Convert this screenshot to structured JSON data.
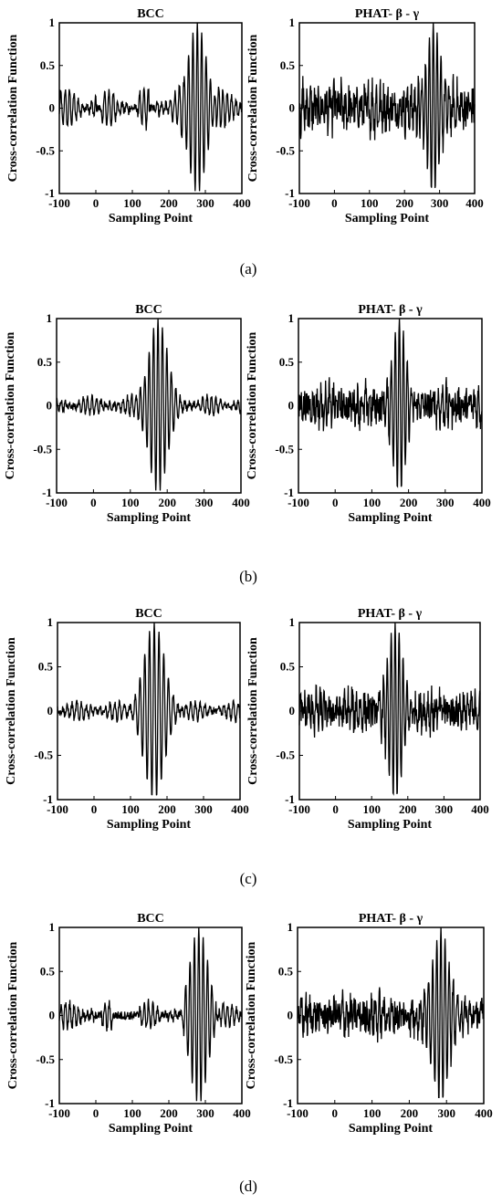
{
  "chart_data": [
    {
      "id": "a-left",
      "row": "a",
      "type": "line",
      "title": "BCC",
      "xlabel": "Sampling Point",
      "ylabel": "Cross-correlation Function",
      "xlim": [
        -100,
        400
      ],
      "ylim": [
        -1,
        1
      ],
      "xticks": [
        "-100",
        "0",
        "100",
        "200",
        "300",
        "400"
      ],
      "yticks": [
        "-1",
        "-0.5",
        "0",
        "0.5",
        "1"
      ],
      "grid": false,
      "series": [
        {
          "peak_x": 278,
          "peak_y": 1.0,
          "envelope_width": 35,
          "period": 12,
          "background_amplitude": 0.22,
          "noise_level": 0.05,
          "background_ranges": [
            [
              -100,
              0
            ],
            [
              15,
              90
            ],
            [
              115,
              145
            ],
            [
              165,
              240
            ],
            [
              330,
              400
            ]
          ]
        }
      ]
    },
    {
      "id": "a-right",
      "row": "a",
      "type": "line",
      "title": "PHAT- β - γ",
      "xlabel": "Sampling Point",
      "ylabel": "Cross-correlation Function",
      "xlim": [
        -100,
        400
      ],
      "ylim": [
        -1,
        1
      ],
      "xticks": [
        "-100",
        "0",
        "100",
        "200",
        "300",
        "400"
      ],
      "yticks": [
        "-1",
        "-0.5",
        "0",
        "0.5",
        "1"
      ],
      "grid": false,
      "series": [
        {
          "peak_x": 282,
          "peak_y": 1.0,
          "envelope_width": 28,
          "period": 11,
          "background_amplitude": 0.22,
          "noise_level": 0.22,
          "background_ranges": [
            [
              -100,
              0
            ],
            [
              15,
              400
            ]
          ]
        }
      ]
    },
    {
      "id": "b-left",
      "row": "b",
      "type": "line",
      "title": "BCC",
      "xlabel": "Sampling Point",
      "ylabel": "Cross-correlation Function",
      "xlim": [
        -100,
        400
      ],
      "ylim": [
        -1,
        1
      ],
      "xticks": [
        "-100",
        "0",
        "100",
        "200",
        "300",
        "400"
      ],
      "yticks": [
        "-1",
        "-0.5",
        "0",
        "0.5",
        "1"
      ],
      "grid": false,
      "series": [
        {
          "peak_x": 175,
          "peak_y": 1.0,
          "envelope_width": 35,
          "period": 12,
          "background_amplitude": 0.1,
          "noise_level": 0.04,
          "background_ranges": [
            [
              -100,
              400
            ]
          ]
        }
      ]
    },
    {
      "id": "b-right",
      "row": "b",
      "type": "line",
      "title": "PHAT- β - γ",
      "xlabel": "Sampling Point",
      "ylabel": "Cross-correlation Function",
      "xlim": [
        -100,
        400
      ],
      "ylim": [
        -1,
        1
      ],
      "xticks": [
        "-100",
        "0",
        "100",
        "200",
        "300",
        "400"
      ],
      "yticks": [
        "-1",
        "-0.5",
        "0",
        "0.5",
        "1"
      ],
      "grid": false,
      "series": [
        {
          "peak_x": 175,
          "peak_y": 1.0,
          "envelope_width": 28,
          "period": 11,
          "background_amplitude": 0.16,
          "noise_level": 0.18,
          "background_ranges": [
            [
              -100,
              0
            ],
            [
              15,
              400
            ]
          ]
        }
      ]
    },
    {
      "id": "c-left",
      "row": "c",
      "type": "line",
      "title": "BCC",
      "xlabel": "Sampling Point",
      "ylabel": "Cross-correlation Function",
      "xlim": [
        -100,
        400
      ],
      "ylim": [
        -1,
        1
      ],
      "xticks": [
        "-100",
        "0",
        "100",
        "200",
        "300",
        "400"
      ],
      "yticks": [
        "-1",
        "-0.5",
        "0",
        "0.5",
        "1"
      ],
      "grid": false,
      "series": [
        {
          "peak_x": 165,
          "peak_y": 1.0,
          "envelope_width": 40,
          "period": 13,
          "background_amplitude": 0.1,
          "noise_level": 0.04,
          "background_ranges": [
            [
              -100,
              110
            ],
            [
              235,
              400
            ]
          ]
        }
      ]
    },
    {
      "id": "c-right",
      "row": "c",
      "type": "line",
      "title": "PHAT- β - γ",
      "xlabel": "Sampling Point",
      "ylabel": "Cross-correlation Function",
      "xlim": [
        -100,
        400
      ],
      "ylim": [
        -1,
        1
      ],
      "xticks": [
        "-100",
        "0",
        "100",
        "200",
        "300",
        "400"
      ],
      "yticks": [
        "-1",
        "-0.5",
        "0",
        "0.5",
        "1"
      ],
      "grid": false,
      "series": [
        {
          "peak_x": 165,
          "peak_y": 1.0,
          "envelope_width": 30,
          "period": 11,
          "background_amplitude": 0.16,
          "noise_level": 0.18,
          "background_ranges": [
            [
              -100,
              0
            ],
            [
              15,
              400
            ]
          ]
        }
      ]
    },
    {
      "id": "d-left",
      "row": "d",
      "type": "line",
      "title": "BCC",
      "xlabel": "Sampling Point",
      "ylabel": "Cross-correlation Function",
      "xlim": [
        -100,
        400
      ],
      "ylim": [
        -1,
        1
      ],
      "xticks": [
        "-100",
        "0",
        "100",
        "200",
        "300",
        "400"
      ],
      "yticks": [
        "-1",
        "-0.5",
        "0",
        "0.5",
        "1"
      ],
      "grid": false,
      "series": [
        {
          "peak_x": 282,
          "peak_y": 1.0,
          "envelope_width": 35,
          "period": 12,
          "background_amplitude": 0.15,
          "noise_level": 0.05,
          "background_ranges": [
            [
              -100,
              0
            ],
            [
              15,
              45
            ],
            [
              120,
              240
            ],
            [
              330,
              400
            ]
          ]
        }
      ]
    },
    {
      "id": "d-right",
      "row": "d",
      "type": "line",
      "title": "PHAT- β - γ",
      "xlabel": "Sampling Point",
      "ylabel": "Cross-correlation Function",
      "xlim": [
        -100,
        400
      ],
      "ylim": [
        -1,
        1
      ],
      "xticks": [
        "-100",
        "0",
        "100",
        "200",
        "300",
        "400"
      ],
      "yticks": [
        "-1",
        "-0.5",
        "0",
        "0.5",
        "1"
      ],
      "grid": false,
      "series": [
        {
          "peak_x": 285,
          "peak_y": 1.0,
          "envelope_width": 30,
          "period": 11,
          "background_amplitude": 0.16,
          "noise_level": 0.18,
          "background_ranges": [
            [
              -100,
              0
            ],
            [
              15,
              400
            ]
          ]
        }
      ]
    }
  ],
  "captions": [
    "(a)",
    "(b)",
    "(c)",
    "(d)"
  ],
  "colors": {
    "line": "#000000",
    "axis": "#000000",
    "background": "#ffffff"
  }
}
